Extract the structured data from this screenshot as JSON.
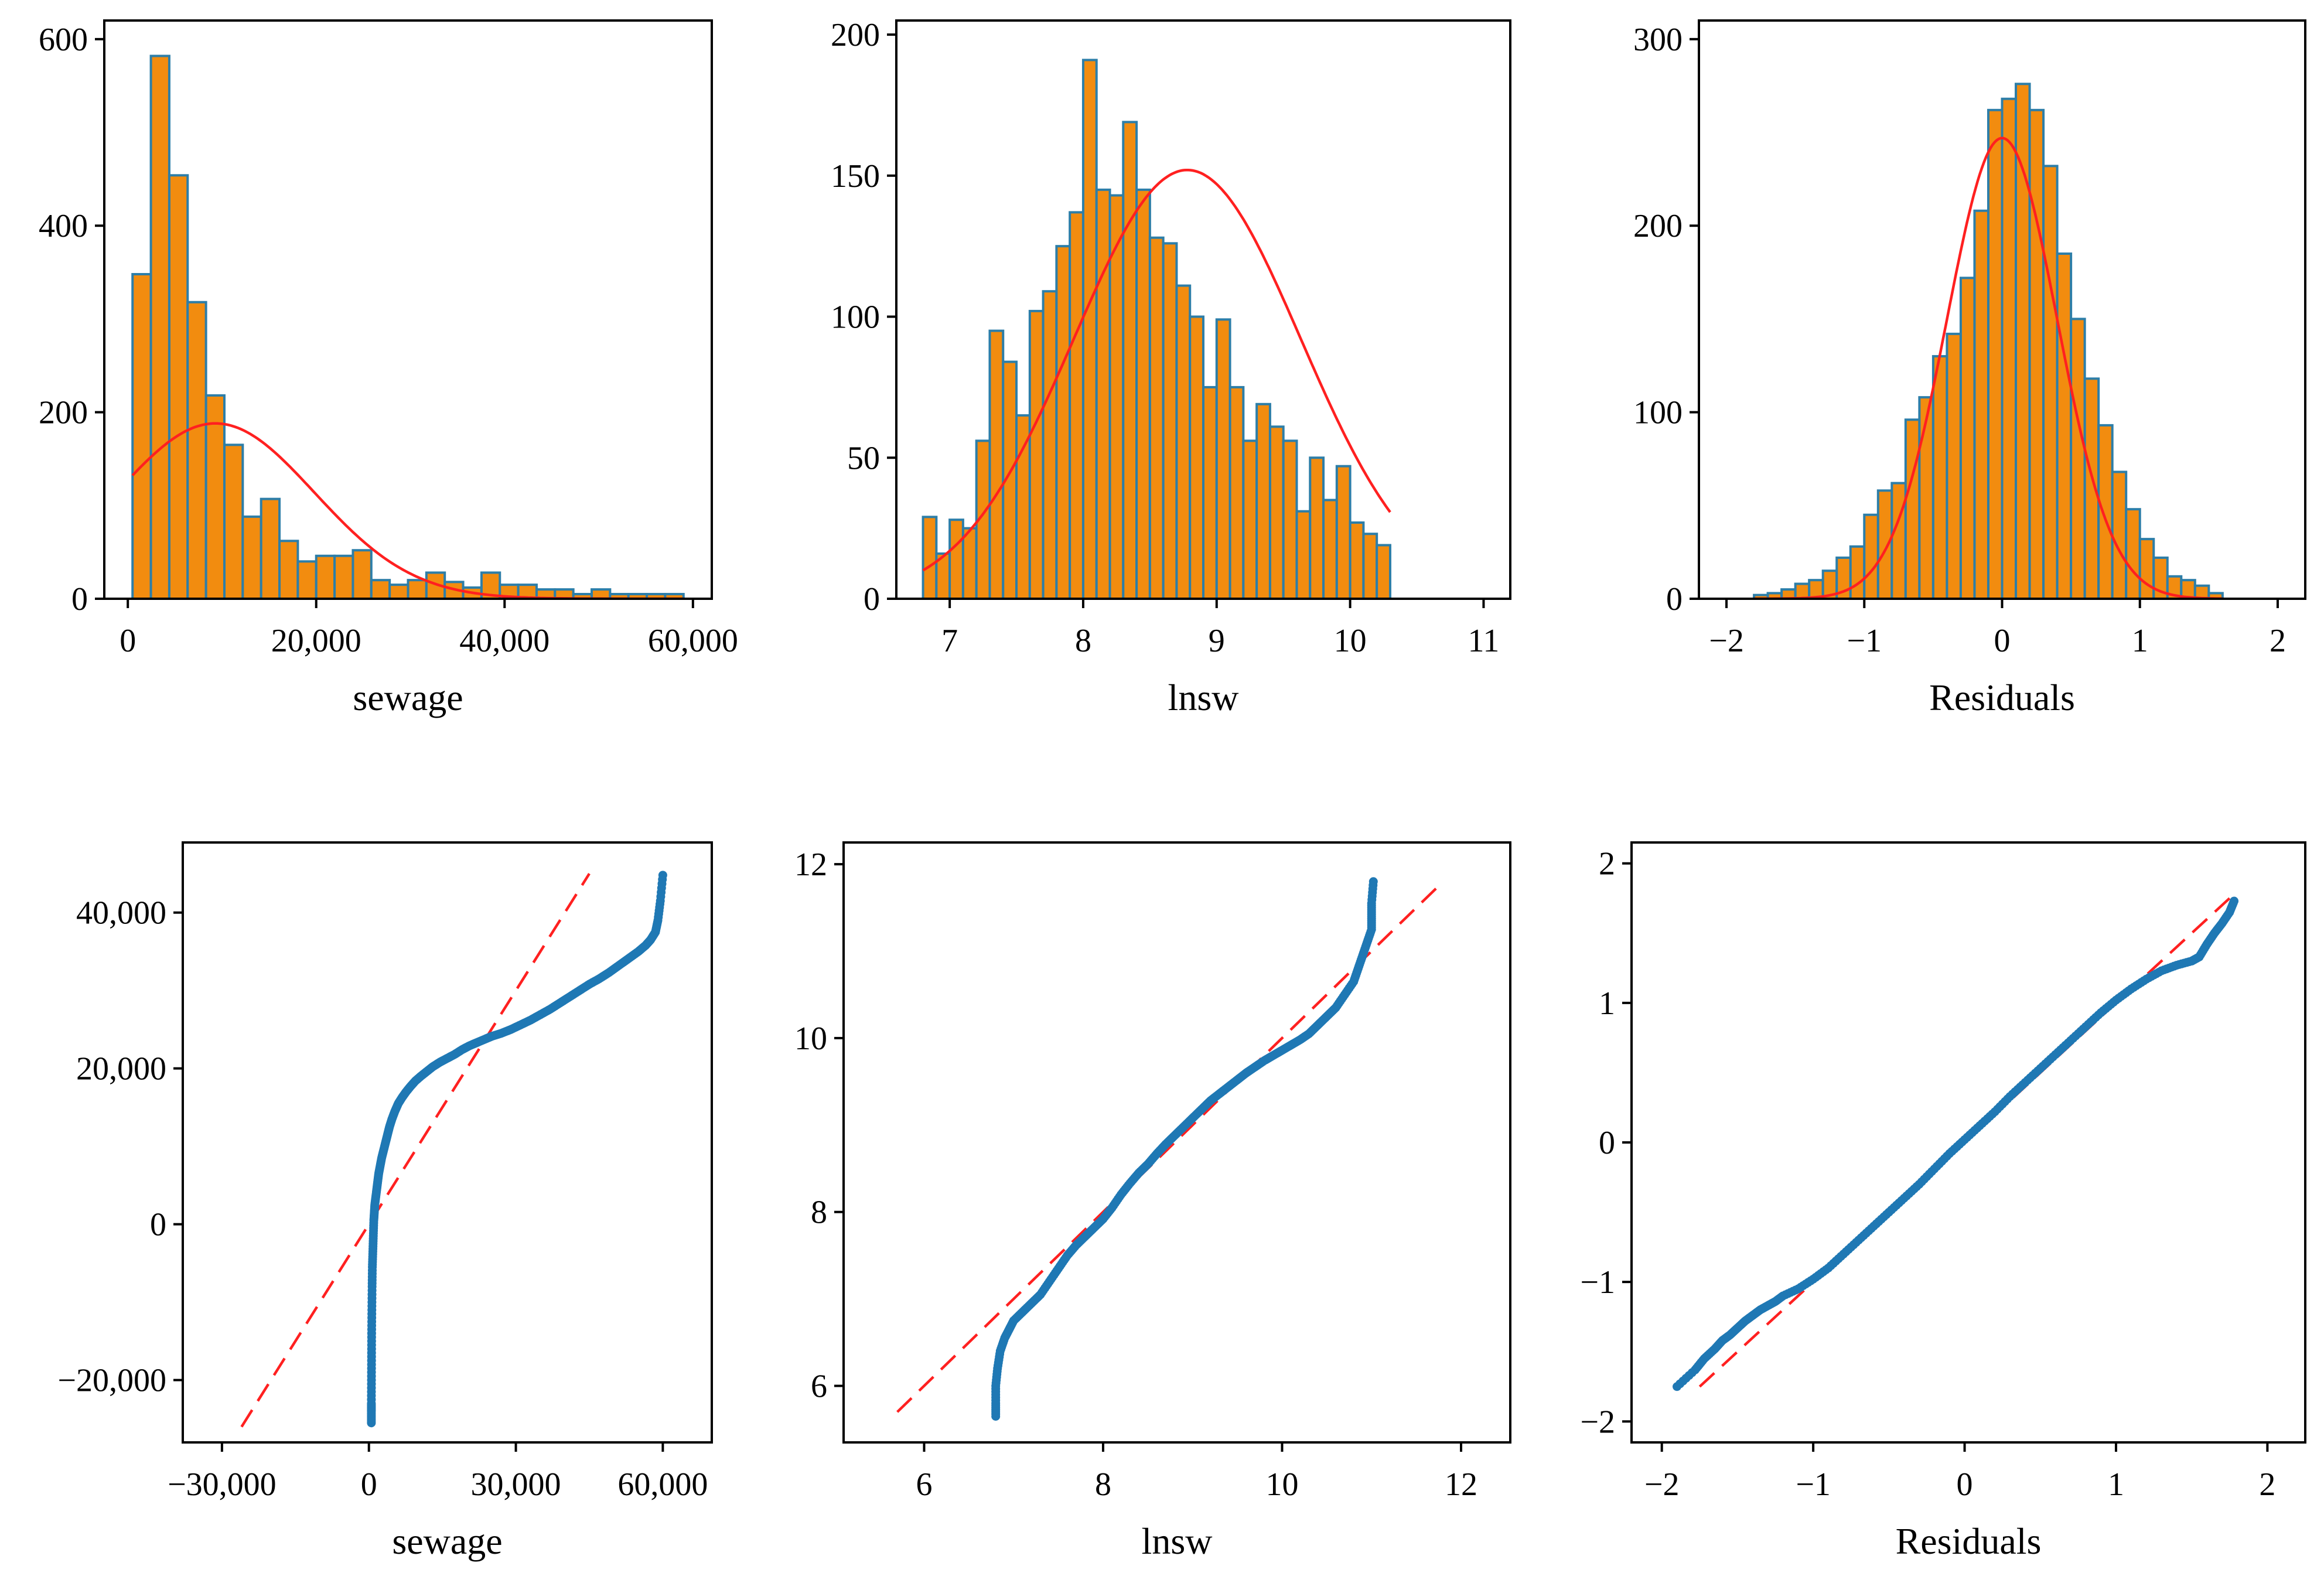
{
  "chart_data": [
    {
      "type": "bar",
      "subtype": "histogram-with-normal-curve",
      "title": "",
      "xlabel": "sewage",
      "ylabel": "",
      "xlim": [
        -2500,
        62000
      ],
      "ylim": [
        0,
        620
      ],
      "xticks": [
        0,
        20000,
        40000,
        60000
      ],
      "xtick_labels": [
        "0",
        "20,000",
        "40,000",
        "60,000"
      ],
      "yticks": [
        0,
        200,
        400,
        600
      ],
      "ytick_labels": [
        "0",
        "200",
        "400",
        "600"
      ],
      "bin_start": 500,
      "bin_width": 1950,
      "values": [
        348,
        582,
        454,
        318,
        218,
        165,
        88,
        107,
        62,
        40,
        46,
        46,
        52,
        20,
        15,
        20,
        28,
        18,
        12,
        28,
        15,
        15,
        10,
        10,
        5,
        10,
        5,
        5,
        5,
        5
      ],
      "normal_curve": {
        "mean": 9300,
        "sd": 10500,
        "peak": 188
      },
      "colors": {
        "bar_fill": "#f28c0f",
        "bar_edge": "#2d7ea8",
        "curve": "#ff2020"
      }
    },
    {
      "type": "bar",
      "subtype": "histogram-with-normal-curve",
      "title": "",
      "xlabel": "lnsw",
      "ylabel": "",
      "xlim": [
        6.6,
        11.2
      ],
      "ylim": [
        0,
        205
      ],
      "xticks": [
        7,
        8,
        9,
        10,
        11
      ],
      "xtick_labels": [
        "7",
        "8",
        "9",
        "10",
        "11"
      ],
      "yticks": [
        0,
        50,
        100,
        150,
        200
      ],
      "ytick_labels": [
        "0",
        "50",
        "100",
        "150",
        "200"
      ],
      "bin_start": 6.8,
      "bin_width": 0.1,
      "values": [
        29,
        16,
        28,
        25,
        56,
        95,
        84,
        65,
        102,
        109,
        125,
        137,
        191,
        145,
        143,
        169,
        145,
        128,
        126,
        111,
        100,
        75,
        99,
        75,
        56,
        69,
        61,
        56,
        31,
        50,
        35,
        47,
        27,
        23,
        19
      ],
      "normal_curve": {
        "mean": 8.78,
        "sd": 0.85,
        "peak": 152
      },
      "colors": {
        "bar_fill": "#f28c0f",
        "bar_edge": "#2d7ea8",
        "curve": "#ff2020"
      }
    },
    {
      "type": "bar",
      "subtype": "histogram-with-normal-curve",
      "title": "",
      "xlabel": "Residuals",
      "ylabel": "",
      "xlim": [
        -2.2,
        2.2
      ],
      "ylim": [
        0,
        310
      ],
      "xticks": [
        -2,
        -1,
        0,
        1,
        2
      ],
      "xtick_labels": [
        "−2",
        "−1",
        "0",
        "1",
        "2"
      ],
      "yticks": [
        0,
        100,
        200,
        300
      ],
      "ytick_labels": [
        "0",
        "100",
        "200",
        "300"
      ],
      "bin_start": -1.8,
      "bin_width": 0.1,
      "values": [
        2,
        3,
        5,
        8,
        10,
        15,
        22,
        28,
        45,
        58,
        62,
        96,
        108,
        130,
        142,
        172,
        208,
        262,
        268,
        276,
        262,
        232,
        185,
        150,
        118,
        93,
        68,
        48,
        32,
        22,
        12,
        10,
        7,
        3
      ],
      "normal_curve": {
        "mean": 0.0,
        "sd": 0.4,
        "peak": 247
      },
      "colors": {
        "bar_fill": "#f28c0f",
        "bar_edge": "#2d7ea8",
        "curve": "#ff2020"
      }
    },
    {
      "type": "scatter",
      "subtype": "normal-qq-plot",
      "title": "",
      "xlabel": "sewage",
      "ylabel": "",
      "xlim": [
        -38000,
        70000
      ],
      "ylim": [
        -28000,
        49000
      ],
      "xticks": [
        -30000,
        0,
        30000,
        60000
      ],
      "xtick_labels": [
        "−30,000",
        "0",
        "30,000",
        "60,000"
      ],
      "yticks": [
        -20000,
        0,
        20000,
        40000
      ],
      "ytick_labels": [
        "−20,000",
        "0",
        "20,000",
        "40,000"
      ],
      "reference_line": {
        "x": [
          -26000,
          45000
        ],
        "y": [
          -26000,
          45000
        ]
      },
      "points_x": [
        500,
        500,
        500,
        520,
        540,
        560,
        600,
        650,
        700,
        800,
        900,
        1000,
        1100,
        1200,
        1400,
        1600,
        1800,
        2000,
        2300,
        2600,
        3000,
        3400,
        3800,
        4200,
        4700,
        5300,
        6000,
        6800,
        7600,
        8500,
        9500,
        10600,
        11800,
        13000,
        14500,
        16000,
        17500,
        19000,
        20500,
        22000,
        23500,
        25000,
        27000,
        29000,
        31000,
        33000,
        35000,
        37000,
        39000,
        41000,
        43000,
        45000,
        47000,
        49000,
        51000,
        53000,
        55000,
        56500,
        57500,
        58500,
        59000,
        59500,
        60000
      ],
      "points_y": [
        -25500,
        -24000,
        -23000,
        -20000,
        -17000,
        -14000,
        -11000,
        -8000,
        -5500,
        -3500,
        -1500,
        500,
        1500,
        2500,
        3500,
        4500,
        5500,
        6500,
        7500,
        8500,
        9500,
        10500,
        11500,
        12500,
        13500,
        14500,
        15500,
        16300,
        17000,
        17700,
        18400,
        19000,
        19600,
        20200,
        20800,
        21300,
        21800,
        22400,
        22900,
        23300,
        23700,
        24100,
        24500,
        25000,
        25600,
        26200,
        26900,
        27600,
        28400,
        29200,
        30000,
        30800,
        31500,
        32300,
        33200,
        34100,
        35000,
        35800,
        36500,
        37500,
        39000,
        41500,
        44800
      ],
      "colors": {
        "points": "#1f78b4",
        "reference_line": "#ff2020"
      }
    },
    {
      "type": "scatter",
      "subtype": "normal-qq-plot",
      "title": "",
      "xlabel": "lnsw",
      "ylabel": "",
      "xlim": [
        5.1,
        12.55
      ],
      "ylim": [
        5.35,
        12.25
      ],
      "xticks": [
        6,
        8,
        10,
        12
      ],
      "xtick_labels": [
        "6",
        "8",
        "10",
        "12"
      ],
      "yticks": [
        6,
        8,
        10,
        12
      ],
      "ytick_labels": [
        "6",
        "8",
        "10",
        "12"
      ],
      "reference_line": {
        "x": [
          5.7,
          11.75
        ],
        "y": [
          5.7,
          11.75
        ]
      },
      "points_x": [
        6.8,
        6.8,
        6.8,
        6.82,
        6.85,
        6.9,
        6.95,
        7.0,
        7.1,
        7.2,
        7.3,
        7.4,
        7.5,
        7.6,
        7.7,
        7.8,
        7.9,
        8.0,
        8.1,
        8.2,
        8.3,
        8.4,
        8.5,
        8.6,
        8.7,
        8.8,
        8.9,
        9.0,
        9.1,
        9.2,
        9.3,
        9.4,
        9.5,
        9.6,
        9.7,
        9.8,
        9.9,
        10.0,
        10.1,
        10.2,
        10.3,
        10.4,
        10.5,
        10.6,
        10.7,
        10.8,
        10.85,
        10.9,
        10.95,
        11.0,
        11.0,
        11.0,
        11.02
      ],
      "points_y": [
        5.65,
        5.8,
        6.0,
        6.2,
        6.4,
        6.55,
        6.65,
        6.75,
        6.85,
        6.95,
        7.05,
        7.2,
        7.35,
        7.5,
        7.62,
        7.72,
        7.82,
        7.92,
        8.05,
        8.2,
        8.33,
        8.45,
        8.55,
        8.67,
        8.78,
        8.88,
        8.98,
        9.08,
        9.18,
        9.28,
        9.36,
        9.44,
        9.52,
        9.6,
        9.67,
        9.74,
        9.8,
        9.86,
        9.92,
        9.98,
        10.05,
        10.15,
        10.25,
        10.35,
        10.5,
        10.65,
        10.8,
        10.95,
        11.1,
        11.25,
        11.4,
        11.55,
        11.8
      ],
      "colors": {
        "points": "#1f78b4",
        "reference_line": "#ff2020"
      }
    },
    {
      "type": "scatter",
      "subtype": "normal-qq-plot",
      "title": "",
      "xlabel": "Residuals",
      "ylabel": "",
      "xlim": [
        -2.2,
        2.25
      ],
      "ylim": [
        -2.15,
        2.15
      ],
      "xticks": [
        -2,
        -1,
        0,
        1,
        2
      ],
      "xtick_labels": [
        "−2",
        "−1",
        "0",
        "1",
        "2"
      ],
      "yticks": [
        -2,
        -1,
        0,
        1,
        2
      ],
      "ytick_labels": [
        "−2",
        "−1",
        "0",
        "1",
        "2"
      ],
      "reference_line": {
        "x": [
          -1.75,
          1.75
        ],
        "y": [
          -1.75,
          1.75
        ]
      },
      "points_x": [
        -1.9,
        -1.78,
        -1.72,
        -1.65,
        -1.6,
        -1.55,
        -1.5,
        -1.45,
        -1.4,
        -1.35,
        -1.3,
        -1.25,
        -1.2,
        -1.1,
        -1.0,
        -0.9,
        -0.8,
        -0.7,
        -0.6,
        -0.5,
        -0.4,
        -0.3,
        -0.2,
        -0.1,
        0.0,
        0.1,
        0.2,
        0.3,
        0.4,
        0.5,
        0.6,
        0.7,
        0.8,
        0.9,
        1.0,
        1.1,
        1.2,
        1.3,
        1.4,
        1.5,
        1.55,
        1.6,
        1.65,
        1.7,
        1.75,
        1.78
      ],
      "points_y": [
        -1.75,
        -1.63,
        -1.55,
        -1.48,
        -1.42,
        -1.38,
        -1.33,
        -1.28,
        -1.24,
        -1.2,
        -1.17,
        -1.14,
        -1.1,
        -1.05,
        -0.98,
        -0.9,
        -0.8,
        -0.7,
        -0.6,
        -0.5,
        -0.4,
        -0.3,
        -0.19,
        -0.08,
        0.02,
        0.12,
        0.22,
        0.33,
        0.43,
        0.53,
        0.63,
        0.73,
        0.83,
        0.93,
        1.02,
        1.1,
        1.17,
        1.23,
        1.27,
        1.3,
        1.33,
        1.42,
        1.5,
        1.57,
        1.65,
        1.73
      ],
      "colors": {
        "points": "#1f78b4",
        "reference_line": "#ff2020"
      }
    }
  ]
}
